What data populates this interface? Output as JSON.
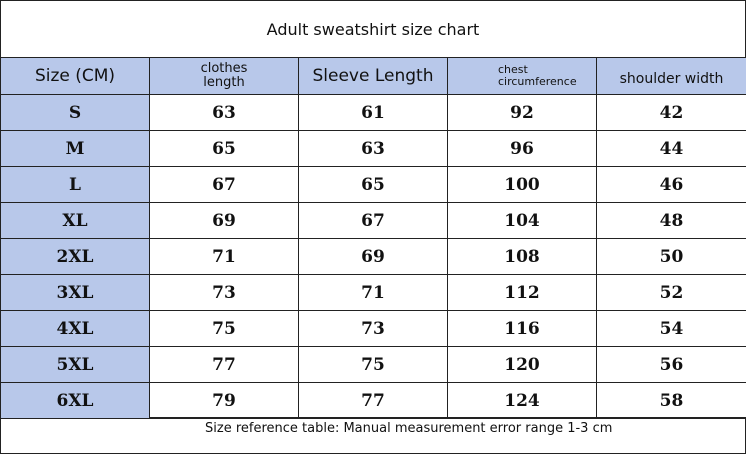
{
  "title": "Adult sweatshirt size chart",
  "table": {
    "header": [
      "Size (CM)",
      "clothes length",
      "Sleeve Length",
      "chest circumference",
      "shoulder width"
    ],
    "rows": [
      [
        "S",
        63,
        61,
        92,
        42
      ],
      [
        "M",
        65,
        63,
        96,
        44
      ],
      [
        "L",
        67,
        65,
        100,
        46
      ],
      [
        "XL",
        69,
        67,
        104,
        48
      ],
      [
        "2XL",
        71,
        69,
        108,
        50
      ],
      [
        "3XL",
        73,
        71,
        112,
        52
      ],
      [
        "4XL",
        75,
        73,
        116,
        54
      ],
      [
        "5XL",
        77,
        75,
        120,
        56
      ],
      [
        "6XL",
        79,
        77,
        124,
        58
      ]
    ]
  },
  "footer": "Size reference table: Manual measurement error range 1-3 cm"
}
